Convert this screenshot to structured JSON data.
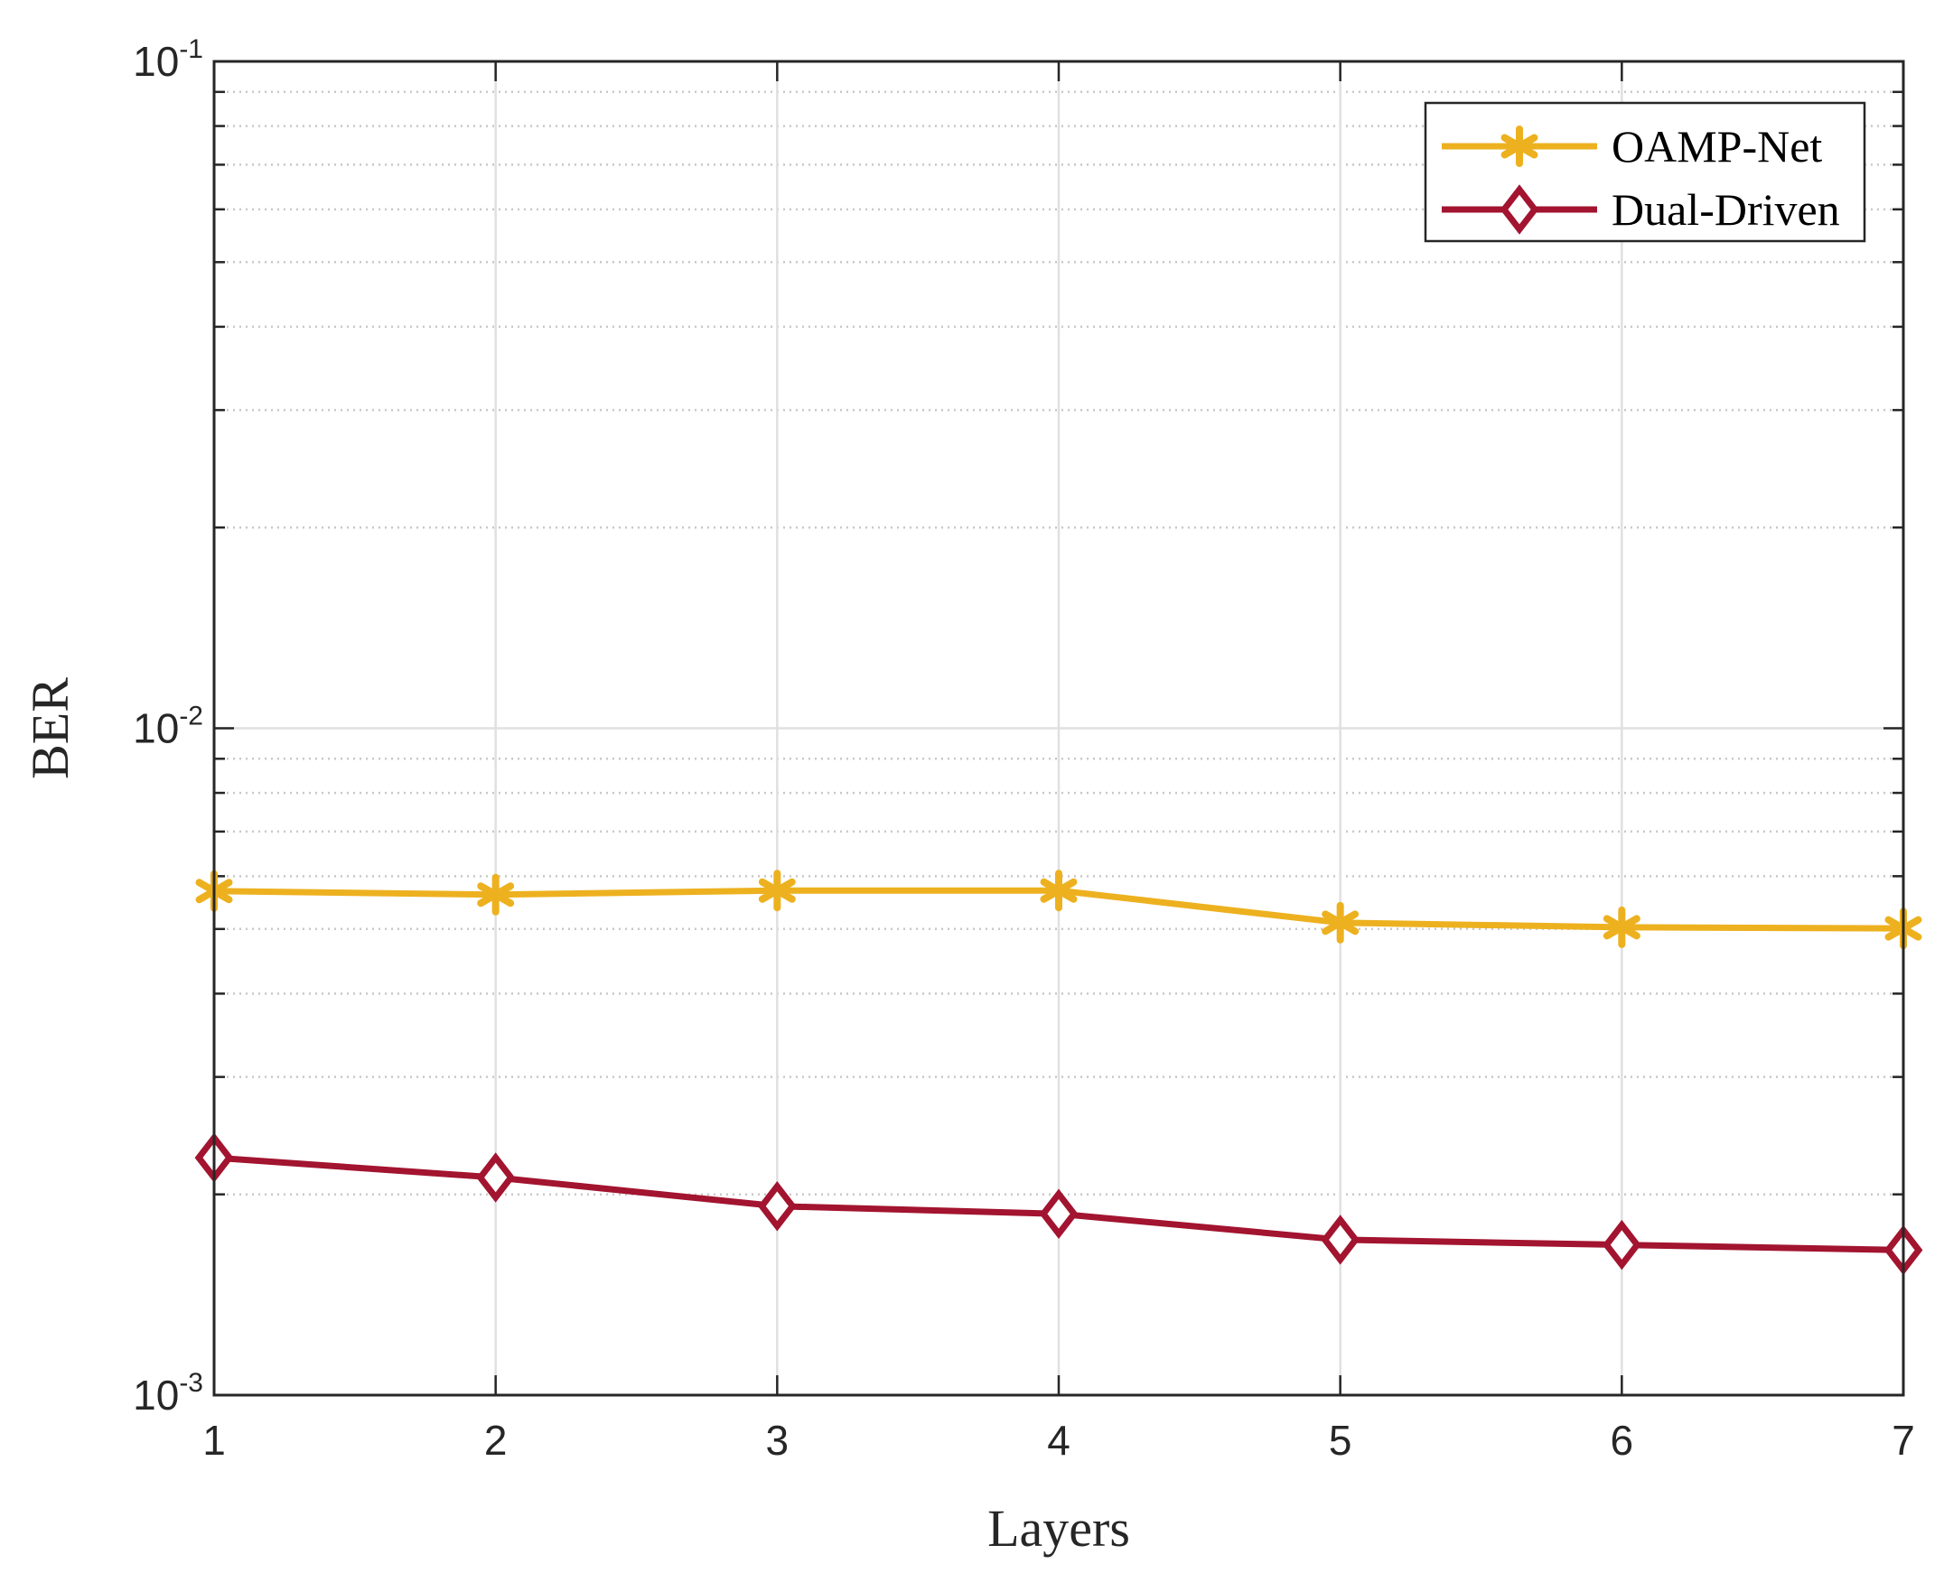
{
  "chart_data": {
    "type": "line",
    "xlabel": "Layers",
    "ylabel": "BER",
    "x": [
      1,
      2,
      3,
      4,
      5,
      6,
      7
    ],
    "xlim": [
      1,
      7
    ],
    "ylim": [
      0.001,
      0.1
    ],
    "yscale": "log",
    "x_ticks": [
      "1",
      "2",
      "3",
      "4",
      "5",
      "6",
      "7"
    ],
    "y_ticks": [
      {
        "value": 0.001,
        "base": "10",
        "exp": "-3"
      },
      {
        "value": 0.01,
        "base": "10",
        "exp": "-2"
      },
      {
        "value": 0.1,
        "base": "10",
        "exp": "-1"
      }
    ],
    "grid": true,
    "minor_grid": true,
    "legend_position": "top-right",
    "series": [
      {
        "name": "OAMP-Net",
        "marker": "asterisk",
        "color": "#EDB120",
        "values": [
          0.0057,
          0.00563,
          0.00571,
          0.00571,
          0.00511,
          0.00503,
          0.00501
        ]
      },
      {
        "name": "Dual-Driven",
        "marker": "diamond",
        "color": "#A2142F",
        "values": [
          0.00227,
          0.00212,
          0.00192,
          0.00187,
          0.00171,
          0.00168,
          0.00165
        ]
      }
    ]
  }
}
